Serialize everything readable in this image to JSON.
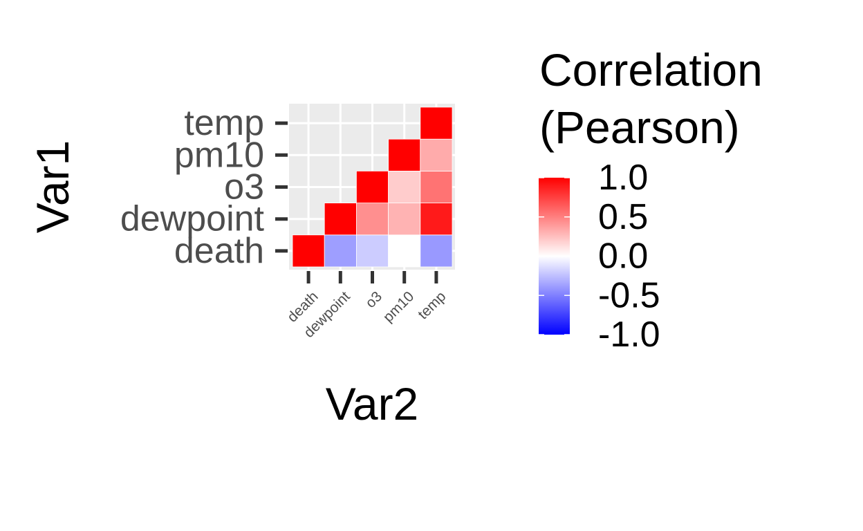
{
  "chart_data": {
    "type": "heatmap",
    "xlabel": "Var2",
    "ylabel": "Var1",
    "x_categories": [
      "death",
      "dewpoint",
      "o3",
      "pm10",
      "temp"
    ],
    "y_categories": [
      "death",
      "dewpoint",
      "o3",
      "pm10",
      "temp"
    ],
    "cells": [
      {
        "x": "death",
        "y": "death",
        "value": 1.0
      },
      {
        "x": "dewpoint",
        "y": "death",
        "value": -0.38
      },
      {
        "x": "o3",
        "y": "death",
        "value": -0.2
      },
      {
        "x": "pm10",
        "y": "death",
        "value": 0.0
      },
      {
        "x": "temp",
        "y": "death",
        "value": -0.4
      },
      {
        "x": "dewpoint",
        "y": "dewpoint",
        "value": 1.0
      },
      {
        "x": "o3",
        "y": "dewpoint",
        "value": 0.44
      },
      {
        "x": "pm10",
        "y": "dewpoint",
        "value": 0.3
      },
      {
        "x": "temp",
        "y": "dewpoint",
        "value": 0.9
      },
      {
        "x": "o3",
        "y": "o3",
        "value": 1.0
      },
      {
        "x": "pm10",
        "y": "o3",
        "value": 0.2
      },
      {
        "x": "temp",
        "y": "o3",
        "value": 0.55
      },
      {
        "x": "pm10",
        "y": "pm10",
        "value": 1.0
      },
      {
        "x": "temp",
        "y": "pm10",
        "value": 0.33
      },
      {
        "x": "temp",
        "y": "temp",
        "value": 1.0
      }
    ],
    "legend": {
      "title_lines": [
        "Correlation",
        "(Pearson)"
      ],
      "breaks": [
        "1.0",
        "0.5",
        "0.0",
        "-0.5",
        "-1.0"
      ],
      "break_values": [
        1.0,
        0.5,
        0.0,
        -0.5,
        -1.0
      ],
      "limits": [
        -1.0,
        1.0
      ],
      "low_color": "#0000ff",
      "mid_color": "#ffffff",
      "high_color": "#ff0000",
      "placement": "right"
    },
    "panel_background": "#ebebeb",
    "grid": true
  }
}
